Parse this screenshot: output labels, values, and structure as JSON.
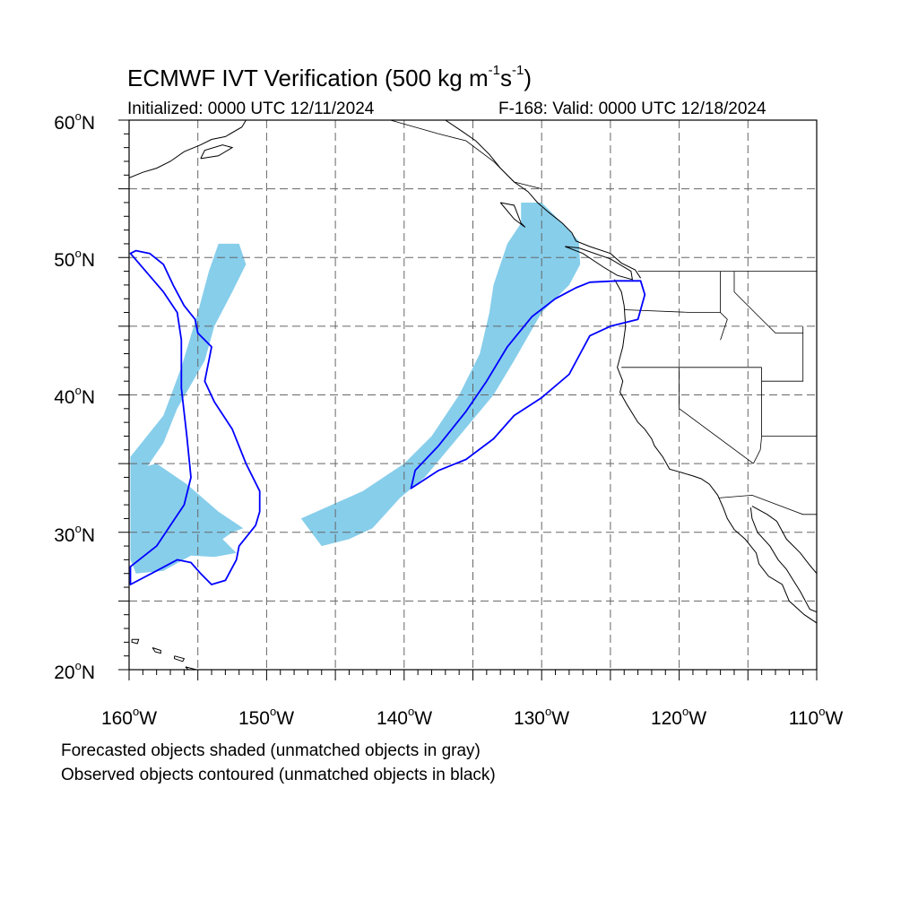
{
  "figure": {
    "title_main": "ECMWF IVT Verification (500 kg m",
    "title_exp1": "-1",
    "title_mid": "s",
    "title_exp2": "-1",
    "title_end": ")",
    "initialized": "Initialized: 0000 UTC 12/11/2024",
    "valid": "F-168: Valid: 0000 UTC 12/18/2024"
  },
  "axes": {
    "lon_range": [
      -160,
      -110
    ],
    "lat_range": [
      20,
      60
    ],
    "y_labels": [
      "60",
      "50",
      "40",
      "30",
      "20"
    ],
    "x_labels": [
      "160",
      "150",
      "140",
      "130",
      "120",
      "110"
    ],
    "lat_suffix": "N",
    "lon_suffix": "W",
    "grid": "dashed, every 5 degrees"
  },
  "legend": {
    "line1": "Forecasted objects shaded (unmatched objects in gray)",
    "line2": "Observed objects contoured (unmatched objects in black)"
  },
  "colors": {
    "forecast_fill": "#87ceeb",
    "observed_contour": "#0000ff",
    "coastline": "#000000",
    "grid": "#666666"
  },
  "forecast_objects": [
    {
      "name": "northern-plume",
      "lonlat": [
        [
          -159.9,
          35.5
        ],
        [
          -157.5,
          38.5
        ],
        [
          -156.2,
          42
        ],
        [
          -155,
          46
        ],
        [
          -154.2,
          49
        ],
        [
          -153.5,
          51
        ],
        [
          -152,
          51
        ],
        [
          -151.5,
          49.5
        ],
        [
          -152.5,
          47.5
        ],
        [
          -153.8,
          45
        ],
        [
          -154.5,
          42.5
        ],
        [
          -156.5,
          39
        ],
        [
          -157.5,
          36.5
        ],
        [
          -159.9,
          33
        ]
      ]
    },
    {
      "name": "southern-blob",
      "lonlat": [
        [
          -159.9,
          34.5
        ],
        [
          -158,
          35
        ],
        [
          -155.8,
          33.5
        ],
        [
          -153.5,
          31.5
        ],
        [
          -151.7,
          30.3
        ],
        [
          -152.5,
          30
        ],
        [
          -153.2,
          29.5
        ],
        [
          -152.2,
          28.5
        ],
        [
          -153.8,
          28.2
        ],
        [
          -155.5,
          28.3
        ],
        [
          -157.5,
          27.2
        ],
        [
          -159.5,
          27.0
        ],
        [
          -159.9,
          28
        ]
      ]
    },
    {
      "name": "main-river",
      "lonlat": [
        [
          -131.5,
          54
        ],
        [
          -130,
          54
        ],
        [
          -128.5,
          52.5
        ],
        [
          -127.3,
          51.2
        ],
        [
          -127.2,
          49.5
        ],
        [
          -128,
          48
        ],
        [
          -130,
          46
        ],
        [
          -132,
          42.5
        ],
        [
          -133.5,
          40
        ],
        [
          -136,
          37
        ],
        [
          -138.5,
          34
        ],
        [
          -140.3,
          32.5
        ],
        [
          -142.3,
          30.3
        ],
        [
          -144,
          29.5
        ],
        [
          -146,
          29
        ],
        [
          -147.5,
          31
        ],
        [
          -143,
          33
        ],
        [
          -140,
          35
        ],
        [
          -138,
          37
        ],
        [
          -136,
          40
        ],
        [
          -134.5,
          43
        ],
        [
          -133.8,
          46
        ],
        [
          -133.5,
          48
        ],
        [
          -132.5,
          51
        ],
        [
          -131.5,
          52.5
        ]
      ]
    }
  ],
  "observed_objects": [
    {
      "name": "central-pacific-contour",
      "lonlat": [
        [
          -159.5,
          50.5
        ],
        [
          -158.5,
          50.3
        ],
        [
          -157.5,
          49.5
        ],
        [
          -156.8,
          48
        ],
        [
          -156,
          46.5
        ],
        [
          -155.2,
          45.5
        ],
        [
          -155,
          44.5
        ],
        [
          -154,
          43.5
        ],
        [
          -154.2,
          42.5
        ],
        [
          -154.5,
          41
        ],
        [
          -153.8,
          39.5
        ],
        [
          -152.5,
          37.5
        ],
        [
          -151.5,
          35
        ],
        [
          -150.5,
          33
        ],
        [
          -150.5,
          31.5
        ],
        [
          -150.8,
          30.5
        ],
        [
          -152,
          29
        ],
        [
          -152.2,
          28
        ],
        [
          -153,
          26.5
        ],
        [
          -154,
          26.2
        ],
        [
          -154.8,
          27
        ],
        [
          -155.5,
          27.8
        ],
        [
          -156.5,
          28
        ],
        [
          -158,
          27.2
        ],
        [
          -159.9,
          26.2
        ],
        [
          -159.9,
          27.5
        ],
        [
          -158,
          29
        ],
        [
          -157,
          30.5
        ],
        [
          -156,
          32
        ],
        [
          -155.5,
          34
        ],
        [
          -155.8,
          37
        ],
        [
          -156.2,
          40.5
        ],
        [
          -156.2,
          44
        ],
        [
          -156.5,
          46
        ],
        [
          -157.5,
          47.5
        ],
        [
          -159.9,
          50.3
        ]
      ]
    },
    {
      "name": "northeast-pacific-contour",
      "lonlat": [
        [
          -126.5,
          48.2
        ],
        [
          -124.5,
          48.3
        ],
        [
          -122.8,
          48.3
        ],
        [
          -122.5,
          47.3
        ],
        [
          -123,
          45.5
        ],
        [
          -125,
          45
        ],
        [
          -126.5,
          44.3
        ],
        [
          -127.2,
          43
        ],
        [
          -128,
          41.5
        ],
        [
          -130,
          39.8
        ],
        [
          -132,
          38.5
        ],
        [
          -133.5,
          36.8
        ],
        [
          -135.5,
          35.3
        ],
        [
          -137.5,
          34.5
        ],
        [
          -139.5,
          33.2
        ],
        [
          -139.2,
          34.5
        ],
        [
          -137.5,
          36.3
        ],
        [
          -135.5,
          38.8
        ],
        [
          -134,
          41
        ],
        [
          -132.5,
          43.5
        ],
        [
          -130.7,
          45.7
        ],
        [
          -129,
          47
        ],
        [
          -127.5,
          47.8
        ]
      ]
    }
  ],
  "coastlines": [
    {
      "name": "alaska-peninsula",
      "lonlat": [
        [
          -160,
          55.8
        ],
        [
          -159,
          56.2
        ],
        [
          -158,
          56.5
        ],
        [
          -157,
          57
        ],
        [
          -156,
          57.7
        ],
        [
          -154.8,
          58.2
        ],
        [
          -154,
          58.6
        ],
        [
          -153,
          58.8
        ],
        [
          -151.8,
          59.5
        ],
        [
          -151.5,
          60
        ]
      ]
    },
    {
      "name": "kodiak",
      "lonlat": [
        [
          -154.8,
          57.2
        ],
        [
          -153.5,
          57.4
        ],
        [
          -152.5,
          58
        ],
        [
          -153.2,
          58.2
        ],
        [
          -154.5,
          57.8
        ],
        [
          -154.8,
          57.2
        ]
      ]
    },
    {
      "name": "bc-se-alaska",
      "lonlat": [
        [
          -137,
          60
        ],
        [
          -135.8,
          59.2
        ],
        [
          -134.8,
          58.5
        ],
        [
          -133.8,
          57.5
        ],
        [
          -133,
          56.5
        ],
        [
          -132,
          55.5
        ],
        [
          -131,
          54.8
        ],
        [
          -130.3,
          54
        ],
        [
          -129.5,
          53.3
        ],
        [
          -128.5,
          52.5
        ],
        [
          -127.8,
          51.8
        ],
        [
          -127.5,
          51.2
        ],
        [
          -126.5,
          50.8
        ],
        [
          -125,
          50.3
        ],
        [
          -124.2,
          49.6
        ],
        [
          -123.2,
          49.1
        ],
        [
          -122.8,
          48.5
        ]
      ]
    },
    {
      "name": "haida-gwaii",
      "lonlat": [
        [
          -133,
          54
        ],
        [
          -132,
          53.8
        ],
        [
          -131.5,
          52.5
        ],
        [
          -131.2,
          52.2
        ],
        [
          -132,
          52.8
        ],
        [
          -133,
          54
        ]
      ]
    },
    {
      "name": "vancouver-island",
      "lonlat": [
        [
          -128.3,
          50.8
        ],
        [
          -127,
          50.3
        ],
        [
          -125.5,
          49.3
        ],
        [
          -124.5,
          48.7
        ],
        [
          -123.4,
          48.4
        ],
        [
          -123.5,
          49
        ],
        [
          -125,
          49.9
        ],
        [
          -127.3,
          50.7
        ],
        [
          -128.3,
          50.8
        ]
      ]
    },
    {
      "name": "us-west-coast",
      "lonlat": [
        [
          -124.7,
          48.4
        ],
        [
          -124.2,
          47.5
        ],
        [
          -124,
          46.5
        ],
        [
          -123.9,
          45
        ],
        [
          -124.1,
          43.5
        ],
        [
          -124.5,
          42
        ],
        [
          -124.1,
          41
        ],
        [
          -124.3,
          40.2
        ],
        [
          -123.8,
          39.3
        ],
        [
          -123,
          38
        ],
        [
          -122.5,
          37.5
        ],
        [
          -122,
          36.8
        ],
        [
          -121.8,
          36.3
        ],
        [
          -121.2,
          35.5
        ],
        [
          -120.7,
          34.6
        ],
        [
          -120,
          34.4
        ],
        [
          -119,
          34.1
        ],
        [
          -118.4,
          33.9
        ],
        [
          -117.8,
          33.5
        ],
        [
          -117.2,
          32.7
        ],
        [
          -116.8,
          31.8
        ],
        [
          -116.5,
          31
        ],
        [
          -116,
          30.2
        ],
        [
          -115.2,
          29.5
        ],
        [
          -114.4,
          28.5
        ],
        [
          -114.2,
          27.7
        ],
        [
          -113.5,
          26.8
        ],
        [
          -112.5,
          26.2
        ],
        [
          -112,
          25
        ],
        [
          -110.9,
          24
        ],
        [
          -110,
          23.4
        ]
      ]
    },
    {
      "name": "baja-east-mainland",
      "lonlat": [
        [
          -114.8,
          31.8
        ],
        [
          -114.7,
          31
        ],
        [
          -114.3,
          30
        ],
        [
          -113.4,
          29
        ],
        [
          -112.8,
          28
        ],
        [
          -112.2,
          27.3
        ],
        [
          -111.7,
          26.5
        ],
        [
          -111.2,
          25.7
        ],
        [
          -110.5,
          24.4
        ],
        [
          -110,
          24.2
        ]
      ]
    },
    {
      "name": "mexico-mainland",
      "lonlat": [
        [
          -114.7,
          31.9
        ],
        [
          -113.6,
          31.3
        ],
        [
          -112.9,
          30.8
        ],
        [
          -112.2,
          29.5
        ],
        [
          -111.2,
          28.5
        ],
        [
          -110.5,
          27.6
        ],
        [
          -110,
          27
        ]
      ]
    },
    {
      "name": "hawaii-kauai",
      "lonlat": [
        [
          -159.8,
          22.2
        ],
        [
          -159.3,
          22.2
        ],
        [
          -159.4,
          21.9
        ],
        [
          -159.8,
          22.0
        ],
        [
          -159.8,
          22.2
        ]
      ]
    },
    {
      "name": "hawaii-oahu",
      "lonlat": [
        [
          -158.3,
          21.6
        ],
        [
          -157.7,
          21.4
        ],
        [
          -157.7,
          21.2
        ],
        [
          -158.1,
          21.3
        ],
        [
          -158.3,
          21.6
        ]
      ]
    },
    {
      "name": "hawaii-maui",
      "lonlat": [
        [
          -156.7,
          21.0
        ],
        [
          -156,
          20.8
        ],
        [
          -156.1,
          20.6
        ],
        [
          -156.7,
          20.8
        ],
        [
          -156.7,
          21.0
        ]
      ]
    },
    {
      "name": "hawaii-big-island",
      "lonlat": [
        [
          -155.9,
          20.2
        ],
        [
          -155.1,
          20.0
        ],
        [
          -155.0,
          19.7
        ],
        [
          -155.6,
          19.9
        ],
        [
          -155.9,
          20.2
        ]
      ]
    }
  ],
  "borders": [
    {
      "name": "us-canada",
      "lonlat": [
        [
          -123,
          49
        ],
        [
          -110,
          49
        ]
      ]
    },
    {
      "name": "bc-alaska",
      "lonlat": [
        [
          -141,
          60
        ],
        [
          -137.5,
          59
        ],
        [
          -135.5,
          58.5
        ],
        [
          -133.5,
          57
        ],
        [
          -132,
          55.5
        ],
        [
          -130,
          55
        ]
      ]
    },
    {
      "name": "wa-or",
      "lonlat": [
        [
          -124,
          46.2
        ],
        [
          -119,
          46
        ],
        [
          -117,
          46
        ]
      ]
    },
    {
      "name": "or-ca-nv",
      "lonlat": [
        [
          -124.2,
          42
        ],
        [
          -114,
          42
        ]
      ]
    },
    {
      "name": "ca-nv",
      "lonlat": [
        [
          -120,
          42
        ],
        [
          -120,
          39
        ],
        [
          -114.6,
          35
        ]
      ]
    },
    {
      "name": "nv-az",
      "lonlat": [
        [
          -114.6,
          35
        ],
        [
          -114.1,
          36
        ],
        [
          -114,
          37
        ],
        [
          -114,
          42
        ]
      ]
    },
    {
      "name": "id-west",
      "lonlat": [
        [
          -117,
          49
        ],
        [
          -117,
          46
        ],
        [
          -116.5,
          45.5
        ],
        [
          -117,
          44
        ]
      ]
    },
    {
      "name": "id-mt",
      "lonlat": [
        [
          -116,
          49
        ],
        [
          -116,
          47.5
        ],
        [
          -114.5,
          46
        ],
        [
          -113,
          44.5
        ],
        [
          -111,
          44.5
        ]
      ]
    },
    {
      "name": "wy-line",
      "lonlat": [
        [
          -111,
          45
        ],
        [
          -111,
          41
        ],
        [
          -114,
          41
        ]
      ]
    },
    {
      "name": "ut-az",
      "lonlat": [
        [
          -114,
          37
        ],
        [
          -110,
          37
        ]
      ]
    },
    {
      "name": "us-mexico",
      "lonlat": [
        [
          -117.1,
          32.5
        ],
        [
          -114.7,
          32.7
        ],
        [
          -111,
          31.3
        ],
        [
          -110,
          31.3
        ]
      ]
    }
  ]
}
